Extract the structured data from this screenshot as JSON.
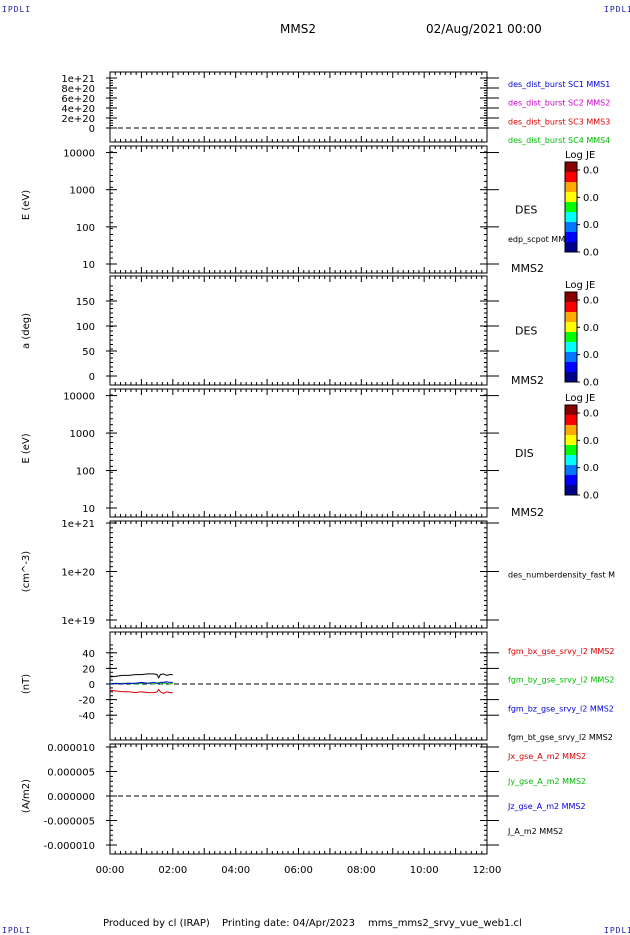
{
  "corner_label": "IPDLI",
  "header": {
    "spacecraft": "MMS2",
    "datetime": "02/Aug/2021 00:00"
  },
  "footer": {
    "produced_by": "Produced by cl (IRAP)",
    "printing_date": "Printing date: 04/Apr/2023",
    "product": "mms_mms2_srvy_vue_web1.cl"
  },
  "colors": {
    "black": "#000000",
    "red": "#dd0000",
    "green": "#00bb00",
    "blue": "#0000dd",
    "magenta": "#cc00cc",
    "dashed": "#000000"
  },
  "chart_data": [
    {
      "type": "line",
      "panel": "dist_burst",
      "yticks": [
        "1e+21",
        "8e+20",
        "6e+20",
        "4e+20",
        "2e+20",
        "0"
      ],
      "ylim": [
        0,
        1e+21
      ],
      "dashed_zero_line": true,
      "legend": [
        {
          "name": "des_dist_burst SC1 MMS1",
          "color": "#0000dd"
        },
        {
          "name": "des_dist_burst SC2 MMS2",
          "color": "#cc00cc"
        },
        {
          "name": "des_dist_burst SC3 MMS3",
          "color": "#dd0000"
        },
        {
          "name": "des_dist_burst SC4 MMS4",
          "color": "#00bb00"
        }
      ]
    },
    {
      "type": "heatmap",
      "panel": "des_energy",
      "ylabel": "E (eV)",
      "yticks": [
        "10000",
        "1000",
        "100",
        "10"
      ],
      "yscale": "log",
      "ylim": [
        10,
        15000
      ],
      "instrument": "DES",
      "overlay_label": "edp_scpot MMS2",
      "sc_label": "MMS2",
      "colorbar": {
        "title": "Log JE",
        "ticks": [
          "0.0",
          "0.0",
          "0.0",
          "0.0"
        ]
      }
    },
    {
      "type": "heatmap",
      "panel": "des_pitch",
      "ylabel": "a (deg)",
      "yticks": [
        "150",
        "100",
        "50",
        "0"
      ],
      "ylim": [
        0,
        180
      ],
      "instrument": "DES",
      "sc_label": "MMS2",
      "colorbar": {
        "title": "Log JE",
        "ticks": [
          "0.0",
          "0.0",
          "0.0",
          "0.0"
        ]
      }
    },
    {
      "type": "heatmap",
      "panel": "dis_energy",
      "ylabel": "E (eV)",
      "yticks": [
        "10000",
        "1000",
        "100",
        "10"
      ],
      "yscale": "log",
      "ylim": [
        10,
        15000
      ],
      "instrument": "DIS",
      "sc_label": "MMS2",
      "colorbar": {
        "title": "Log JE",
        "ticks": [
          "0.0",
          "0.0",
          "0.0",
          "0.0"
        ]
      }
    },
    {
      "type": "line",
      "panel": "density",
      "ylabel": "(cm^-3)",
      "yticks": [
        "1e+21",
        "1e+20",
        "1e+19"
      ],
      "yscale": "log",
      "ylim": [
        1e+19,
        1e+21
      ],
      "legend": [
        {
          "name": "des_numberdensity_fast M",
          "color": "#000000"
        }
      ]
    },
    {
      "type": "line",
      "panel": "b_field",
      "ylabel": "(nT)",
      "yticks": [
        "40",
        "20",
        "0",
        "-20",
        "-40"
      ],
      "ylim": [
        -50,
        50
      ],
      "dashed_zero_line": true,
      "x_hours": [
        0.0,
        0.2,
        0.4,
        0.6,
        0.8,
        1.0,
        1.2,
        1.4,
        1.5,
        1.55,
        1.6,
        1.7,
        1.8,
        1.9,
        2.0
      ],
      "series": [
        {
          "name": "fgm_bx_gse_srvy_l2 MMS2",
          "color": "#dd0000",
          "values": [
            -8,
            -9,
            -10,
            -10,
            -11,
            -10,
            -11,
            -11,
            -10,
            -7,
            -10,
            -12,
            -10,
            -11,
            -11
          ]
        },
        {
          "name": "fgm_by_gse_srvy_l2 MMS2",
          "color": "#00bb00",
          "values": [
            1,
            0,
            1,
            1,
            0,
            1,
            1,
            0,
            1,
            2,
            0,
            1,
            1,
            0,
            1
          ]
        },
        {
          "name": "fgm_bz_gse_srvy_l2 MMS2",
          "color": "#0000dd",
          "values": [
            0,
            1,
            0,
            1,
            1,
            2,
            1,
            2,
            1,
            0,
            2,
            2,
            3,
            2,
            2
          ]
        },
        {
          "name": "fgm_bt_gse_srvy_l2 MMS2",
          "color": "#000000",
          "values": [
            9,
            10,
            11,
            11,
            12,
            12,
            13,
            13,
            12,
            8,
            12,
            13,
            11,
            12,
            12
          ]
        }
      ]
    },
    {
      "type": "line",
      "panel": "current",
      "ylabel": "(A/m2)",
      "yticks": [
        "0.000010",
        "0.000005",
        "0.000000",
        "-0.000005",
        "-0.000010"
      ],
      "ylim": [
        -1e-05,
        1e-05
      ],
      "dashed_zero_line": true,
      "legend": [
        {
          "name": "Jx_gse_A_m2 MMS2",
          "color": "#dd0000"
        },
        {
          "name": "Jy_gse_A_m2 MMS2",
          "color": "#00bb00"
        },
        {
          "name": "Jz_gse_A_m2 MMS2",
          "color": "#0000dd"
        },
        {
          "name": "J_A_m2 MMS2",
          "color": "#000000"
        }
      ]
    }
  ],
  "time_axis": {
    "ticks": [
      "00:00",
      "02:00",
      "04:00",
      "06:00",
      "08:00",
      "10:00",
      "12:00"
    ],
    "range_hours": [
      0,
      12
    ]
  }
}
